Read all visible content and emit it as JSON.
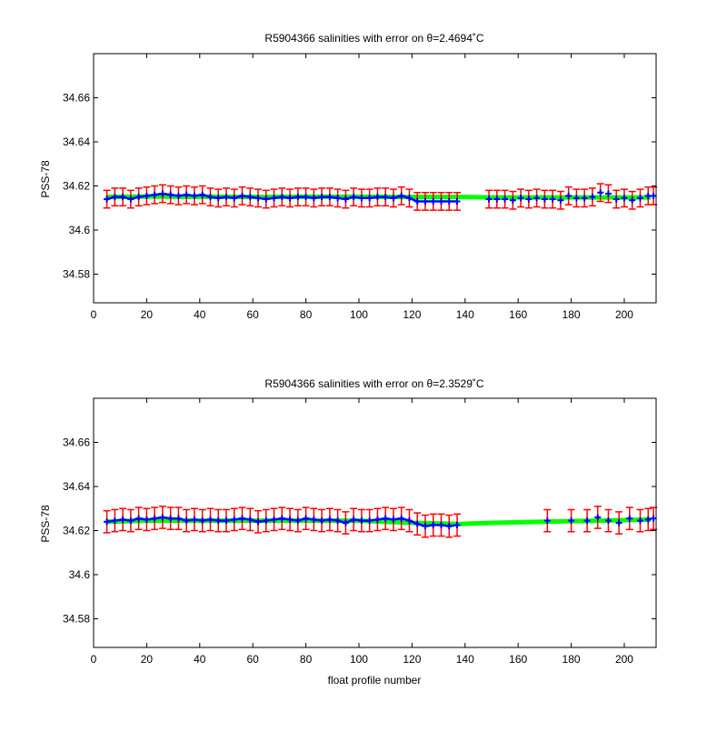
{
  "chart_data": [
    {
      "type": "scatter",
      "title": "R5904366 salinities with error on θ=2.4694˚C",
      "xlabel": "",
      "ylabel": "PSS-78",
      "xlim": [
        0,
        212
      ],
      "ylim": [
        34.567,
        34.68
      ],
      "xticks": [
        0,
        20,
        40,
        60,
        80,
        100,
        120,
        140,
        160,
        180,
        200
      ],
      "yticks": [
        34.58,
        34.6,
        34.62,
        34.64,
        34.66
      ],
      "ytick_labels": [
        "34.58",
        "34.6",
        "34.62",
        "34.64",
        "34.66"
      ],
      "grid": false,
      "series": [
        {
          "style": "fitted-line",
          "color": "#00ff00",
          "x": [
            5,
            20,
            40,
            60,
            80,
            100,
            120,
            138,
            150,
            170,
            190,
            210
          ],
          "y": [
            34.615,
            34.6152,
            34.6151,
            34.615,
            34.6151,
            34.6151,
            34.615,
            34.615,
            34.6148,
            34.6148,
            34.6148,
            34.6148
          ]
        },
        {
          "style": "points-with-errorbars",
          "color": "#0000ff",
          "error_color": "#ff0000",
          "error": 0.004,
          "x": [
            5,
            8,
            11,
            14,
            17,
            20,
            23,
            26,
            29,
            32,
            35,
            38,
            41,
            44,
            47,
            50,
            53,
            56,
            59,
            62,
            65,
            68,
            71,
            74,
            77,
            80,
            83,
            86,
            89,
            92,
            95,
            98,
            101,
            104,
            107,
            110,
            113,
            116,
            119,
            122,
            125,
            128,
            131,
            134,
            137,
            149,
            152,
            155,
            158,
            161,
            164,
            167,
            170,
            173,
            176,
            179,
            182,
            185,
            188,
            191,
            194,
            197,
            200,
            203,
            206,
            209,
            211
          ],
          "y": [
            34.614,
            34.615,
            34.615,
            34.614,
            34.615,
            34.6155,
            34.616,
            34.6165,
            34.616,
            34.6155,
            34.616,
            34.6155,
            34.616,
            34.615,
            34.6145,
            34.615,
            34.6145,
            34.6155,
            34.615,
            34.6145,
            34.614,
            34.6145,
            34.615,
            34.6145,
            34.615,
            34.615,
            34.6145,
            34.615,
            34.615,
            34.6145,
            34.614,
            34.615,
            34.6145,
            34.6145,
            34.615,
            34.615,
            34.6145,
            34.6155,
            34.6145,
            34.613,
            34.613,
            34.613,
            34.613,
            34.613,
            34.613,
            34.614,
            34.614,
            34.614,
            34.6135,
            34.6145,
            34.614,
            34.6145,
            34.614,
            34.614,
            34.6135,
            34.6155,
            34.6145,
            34.6145,
            34.615,
            34.617,
            34.6165,
            34.614,
            34.6145,
            34.6135,
            34.6145,
            34.6155,
            34.6155
          ]
        }
      ]
    },
    {
      "type": "scatter",
      "title": "R5904366 salinities with error on θ=2.3529˚C",
      "xlabel": "float profile number",
      "ylabel": "PSS-78",
      "xlim": [
        0,
        212
      ],
      "ylim": [
        34.567,
        34.68
      ],
      "xticks": [
        0,
        20,
        40,
        60,
        80,
        100,
        120,
        140,
        160,
        180,
        200
      ],
      "yticks": [
        34.58,
        34.6,
        34.62,
        34.64,
        34.66
      ],
      "ytick_labels": [
        "34.58",
        "34.6",
        "34.62",
        "34.64",
        "34.66"
      ],
      "grid": false,
      "series": [
        {
          "style": "fitted-line",
          "color": "#00ff00",
          "x": [
            5,
            20,
            40,
            60,
            80,
            100,
            120,
            138,
            150,
            170,
            190,
            210
          ],
          "y": [
            34.624,
            34.6245,
            34.6245,
            34.6245,
            34.6245,
            34.6245,
            34.6235,
            34.623,
            34.6235,
            34.624,
            34.6245,
            34.625
          ]
        },
        {
          "style": "points-with-errorbars",
          "color": "#0000ff",
          "error_color": "#ff0000",
          "error": 0.005,
          "x": [
            5,
            8,
            11,
            14,
            17,
            20,
            23,
            26,
            29,
            32,
            35,
            38,
            41,
            44,
            47,
            50,
            53,
            56,
            59,
            62,
            65,
            68,
            71,
            74,
            77,
            80,
            83,
            86,
            89,
            92,
            95,
            98,
            101,
            104,
            107,
            110,
            113,
            116,
            119,
            122,
            125,
            128,
            131,
            134,
            137,
            171,
            180,
            186,
            190,
            194,
            198,
            202,
            206,
            209,
            211
          ],
          "y": [
            34.624,
            34.6245,
            34.625,
            34.6245,
            34.6255,
            34.625,
            34.6255,
            34.626,
            34.6255,
            34.6255,
            34.6245,
            34.625,
            34.6245,
            34.625,
            34.6245,
            34.6245,
            34.625,
            34.6255,
            34.625,
            34.624,
            34.6245,
            34.625,
            34.6255,
            34.625,
            34.6245,
            34.6255,
            34.625,
            34.6245,
            34.625,
            34.6245,
            34.6235,
            34.625,
            34.6245,
            34.6245,
            34.625,
            34.6255,
            34.625,
            34.6255,
            34.6245,
            34.623,
            34.622,
            34.6225,
            34.6225,
            34.622,
            34.6225,
            34.6245,
            34.6245,
            34.6245,
            34.626,
            34.6245,
            34.6235,
            34.6255,
            34.6245,
            34.625,
            34.6255
          ]
        }
      ]
    }
  ],
  "panels": [
    {
      "title": "R5904366 salinities with error on θ=2.4694˚C",
      "ylabel": "PSS-78",
      "xlabel": ""
    },
    {
      "title": "R5904366 salinities with error on θ=2.3529˚C",
      "ylabel": "PSS-78",
      "xlabel": "float profile number"
    }
  ]
}
